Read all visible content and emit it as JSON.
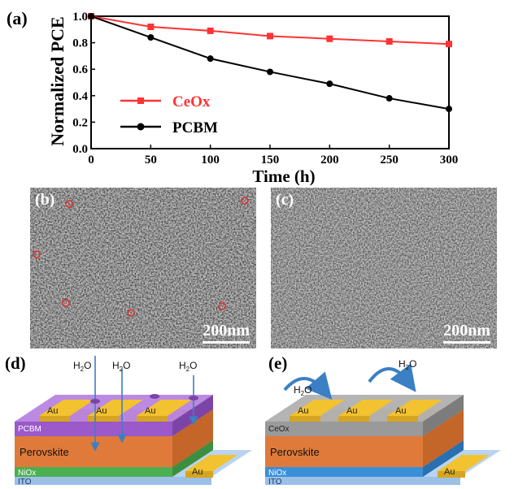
{
  "chart_data": {
    "type": "line",
    "panel_label": "(a)",
    "xlabel": "Time (h)",
    "ylabel": "Normalized PCE",
    "xlim": [
      0,
      300
    ],
    "ylim": [
      0.0,
      1.0
    ],
    "xticks": [
      "0",
      "50",
      "100",
      "150",
      "200",
      "250",
      "300"
    ],
    "yticks": [
      "0.0",
      "0.2",
      "0.4",
      "0.6",
      "0.8",
      "1.0"
    ],
    "legend_position": "center-left",
    "x": [
      0,
      50,
      100,
      150,
      200,
      250,
      300
    ],
    "series": [
      {
        "name": "CeOx",
        "color": "#ff3333",
        "marker": "square",
        "values": [
          1.0,
          0.92,
          0.89,
          0.85,
          0.83,
          0.81,
          0.79
        ]
      },
      {
        "name": "PCBM",
        "color": "#000000",
        "marker": "circle",
        "values": [
          1.0,
          0.84,
          0.68,
          0.58,
          0.49,
          0.38,
          0.3
        ]
      }
    ]
  },
  "sem": {
    "b": {
      "label": "(b)",
      "scale": "200nm"
    },
    "c": {
      "label": "(c)",
      "scale": "200nm"
    }
  },
  "diagrams": {
    "d": {
      "label": "(d)",
      "water": [
        "H2O",
        "H2O",
        "H2O"
      ],
      "electrodes": [
        "Au",
        "Au",
        "Au"
      ],
      "layers": {
        "transport": "PCBM",
        "absorber": "Perovskite",
        "htl": "NiOx",
        "substrate": "ITO",
        "side_electrode": "Au"
      }
    },
    "e": {
      "label": "(e)",
      "water": [
        "H2O",
        "H2O"
      ],
      "electrodes": [
        "Au",
        "Au",
        "Au"
      ],
      "layers": {
        "transport": "CeOx",
        "absorber": "Perovskite",
        "htl": "NiOx",
        "substrate": "ITO",
        "side_electrode": "Au"
      }
    }
  },
  "colors": {
    "pcbm": "#9b59c9",
    "ceox": "#9a9a9a",
    "perovskite": "#e07a3a",
    "nio_d": "#4caf50",
    "nio_e": "#3a8fd9",
    "ito": "#b8d4f0",
    "au": "#f2c230",
    "water_arrow": "#3b7fc4"
  }
}
